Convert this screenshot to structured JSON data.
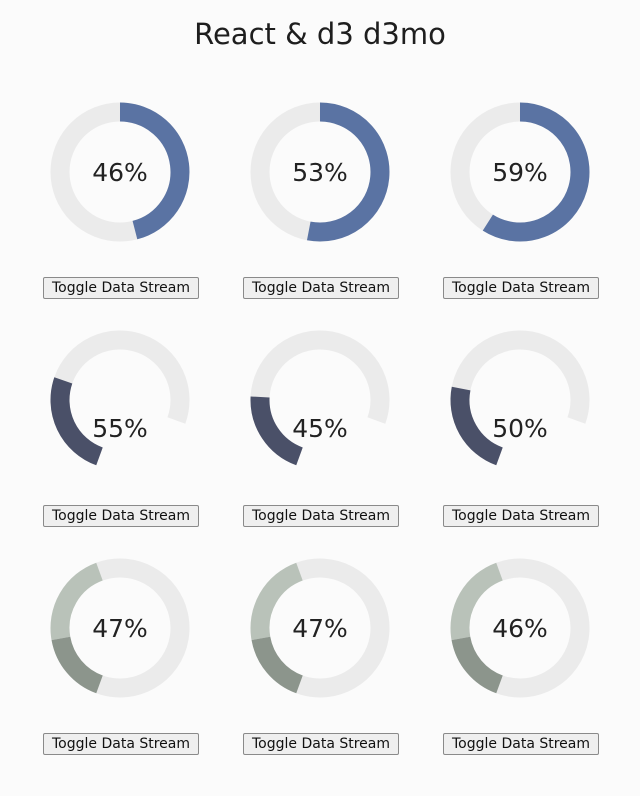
{
  "title": "React & d3 d3mo",
  "colors": {
    "background": "#fbfbfb",
    "track": "#ebebeb",
    "donut_fill": "#5a73a3",
    "arc_fill": "#4a5068",
    "split_light": "#b9c2b9",
    "split_dark": "#8c958c"
  },
  "button_label": "Toggle Data Stream",
  "rows": [
    {
      "style": "donut",
      "gauges": [
        {
          "value": 46,
          "label": "46%"
        },
        {
          "value": 53,
          "label": "53%"
        },
        {
          "value": 59,
          "label": "59%"
        }
      ]
    },
    {
      "style": "arc",
      "gauges": [
        {
          "value": 55,
          "label": "55%"
        },
        {
          "value": 45,
          "label": "45%"
        },
        {
          "value": 50,
          "label": "50%"
        }
      ]
    },
    {
      "style": "split",
      "gauges": [
        {
          "value": 47,
          "label": "47%"
        },
        {
          "value": 47,
          "label": "47%"
        },
        {
          "value": 46,
          "label": "46%"
        }
      ]
    }
  ]
}
